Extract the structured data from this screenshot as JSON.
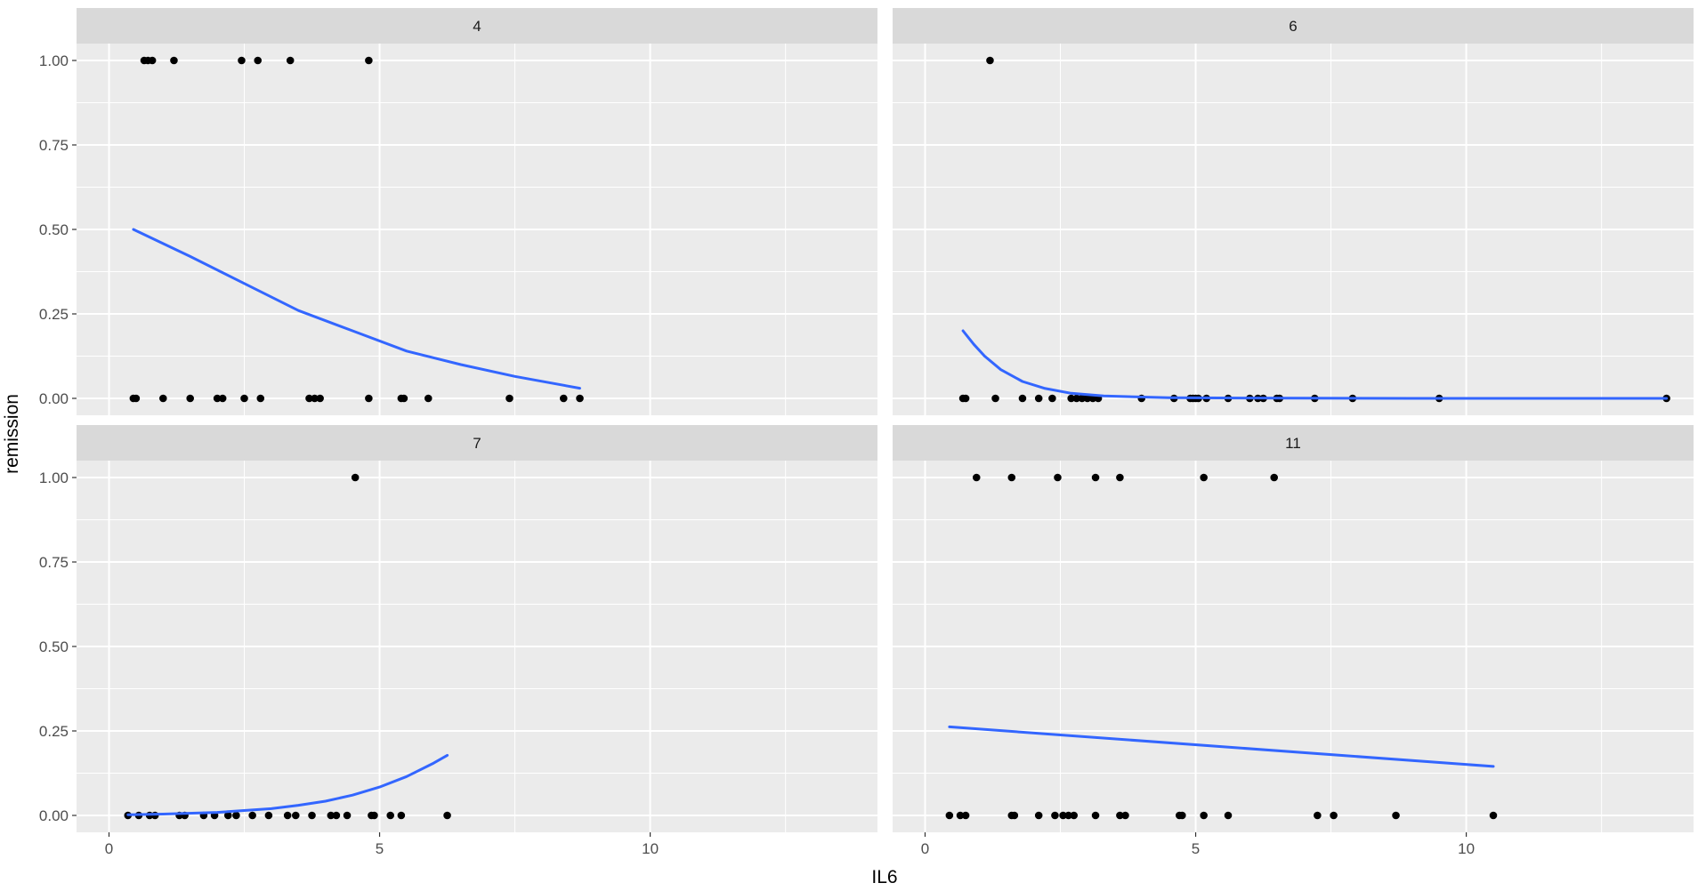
{
  "chart_data": {
    "type": "scatter",
    "facet_layout": "2x2 grid",
    "xlabel": "IL6",
    "ylabel": "remission",
    "xlim": [
      -0.6,
      14.2
    ],
    "ylim": [
      -0.05,
      1.05
    ],
    "x_ticks": [
      "0",
      "5",
      "10"
    ],
    "y_ticks": [
      "0.00",
      "0.25",
      "0.50",
      "0.75",
      "1.00"
    ],
    "grid": true,
    "legend": "none",
    "colors": {
      "panel_background": "#EBEBEB",
      "strip_background": "#D9D9D9",
      "grid": "#FFFFFF",
      "points": "#000000",
      "fit_line": "#3366FF",
      "axis_text": "#4D4D4D"
    },
    "panels": [
      {
        "strip_label": "4",
        "points": [
          [
            0.45,
            0
          ],
          [
            0.5,
            0
          ],
          [
            1.0,
            0
          ],
          [
            1.5,
            0
          ],
          [
            2.0,
            0
          ],
          [
            2.1,
            0
          ],
          [
            2.5,
            0
          ],
          [
            2.8,
            0
          ],
          [
            3.7,
            0
          ],
          [
            3.8,
            0
          ],
          [
            3.9,
            0
          ],
          [
            4.8,
            0
          ],
          [
            5.4,
            0
          ],
          [
            5.45,
            0
          ],
          [
            5.9,
            0
          ],
          [
            7.4,
            0
          ],
          [
            8.4,
            0
          ],
          [
            8.7,
            0
          ],
          [
            0.65,
            1
          ],
          [
            0.72,
            1
          ],
          [
            0.8,
            1
          ],
          [
            1.2,
            1
          ],
          [
            2.45,
            1
          ],
          [
            2.75,
            1
          ],
          [
            3.35,
            1
          ],
          [
            4.8,
            1
          ]
        ],
        "fit": [
          [
            0.45,
            0.5
          ],
          [
            1.5,
            0.42
          ],
          [
            2.5,
            0.34
          ],
          [
            3.5,
            0.26
          ],
          [
            4.5,
            0.2
          ],
          [
            5.5,
            0.14
          ],
          [
            6.5,
            0.1
          ],
          [
            7.5,
            0.065
          ],
          [
            8.7,
            0.03
          ]
        ]
      },
      {
        "strip_label": "6",
        "points": [
          [
            0.7,
            0
          ],
          [
            0.75,
            0
          ],
          [
            1.3,
            0
          ],
          [
            1.8,
            0
          ],
          [
            2.1,
            0
          ],
          [
            2.35,
            0
          ],
          [
            2.7,
            0
          ],
          [
            2.8,
            0
          ],
          [
            2.9,
            0
          ],
          [
            3.0,
            0
          ],
          [
            3.1,
            0
          ],
          [
            3.2,
            0
          ],
          [
            4.0,
            0
          ],
          [
            4.6,
            0
          ],
          [
            4.9,
            0
          ],
          [
            4.95,
            0
          ],
          [
            5.0,
            0
          ],
          [
            5.05,
            0
          ],
          [
            5.2,
            0
          ],
          [
            5.6,
            0
          ],
          [
            6.0,
            0
          ],
          [
            6.15,
            0
          ],
          [
            6.25,
            0
          ],
          [
            6.5,
            0
          ],
          [
            6.55,
            0
          ],
          [
            7.2,
            0
          ],
          [
            7.9,
            0
          ],
          [
            9.5,
            0
          ],
          [
            13.7,
            0
          ],
          [
            1.2,
            1
          ]
        ],
        "fit": [
          [
            0.7,
            0.2
          ],
          [
            0.9,
            0.16
          ],
          [
            1.1,
            0.125
          ],
          [
            1.4,
            0.085
          ],
          [
            1.8,
            0.05
          ],
          [
            2.2,
            0.03
          ],
          [
            2.7,
            0.015
          ],
          [
            3.3,
            0.007
          ],
          [
            4.5,
            0.002
          ],
          [
            6.0,
            0.001
          ],
          [
            9.0,
            0.0
          ],
          [
            13.7,
            0.0
          ]
        ]
      },
      {
        "strip_label": "7",
        "points": [
          [
            0.35,
            0
          ],
          [
            0.55,
            0
          ],
          [
            0.75,
            0
          ],
          [
            0.85,
            0
          ],
          [
            1.3,
            0
          ],
          [
            1.4,
            0
          ],
          [
            1.75,
            0
          ],
          [
            1.95,
            0
          ],
          [
            2.2,
            0
          ],
          [
            2.35,
            0
          ],
          [
            2.65,
            0
          ],
          [
            2.95,
            0
          ],
          [
            3.3,
            0
          ],
          [
            3.45,
            0
          ],
          [
            3.75,
            0
          ],
          [
            4.1,
            0
          ],
          [
            4.2,
            0
          ],
          [
            4.4,
            0
          ],
          [
            4.85,
            0
          ],
          [
            4.9,
            0
          ],
          [
            5.2,
            0
          ],
          [
            5.4,
            0
          ],
          [
            6.25,
            0
          ],
          [
            4.55,
            1
          ]
        ],
        "fit": [
          [
            0.35,
            0.002
          ],
          [
            1.0,
            0.004
          ],
          [
            2.0,
            0.009
          ],
          [
            3.0,
            0.02
          ],
          [
            3.5,
            0.03
          ],
          [
            4.0,
            0.042
          ],
          [
            4.5,
            0.06
          ],
          [
            5.0,
            0.084
          ],
          [
            5.5,
            0.115
          ],
          [
            6.0,
            0.155
          ],
          [
            6.25,
            0.178
          ]
        ]
      },
      {
        "strip_label": "11",
        "points": [
          [
            0.45,
            0
          ],
          [
            0.65,
            0
          ],
          [
            0.75,
            0
          ],
          [
            1.6,
            0
          ],
          [
            1.65,
            0
          ],
          [
            2.1,
            0
          ],
          [
            2.4,
            0
          ],
          [
            2.55,
            0
          ],
          [
            2.65,
            0
          ],
          [
            2.75,
            0
          ],
          [
            3.15,
            0
          ],
          [
            3.6,
            0
          ],
          [
            3.7,
            0
          ],
          [
            4.7,
            0
          ],
          [
            4.75,
            0
          ],
          [
            5.15,
            0
          ],
          [
            5.6,
            0
          ],
          [
            7.25,
            0
          ],
          [
            7.55,
            0
          ],
          [
            8.7,
            0
          ],
          [
            10.5,
            0
          ],
          [
            0.95,
            1
          ],
          [
            1.6,
            1
          ],
          [
            2.45,
            1
          ],
          [
            3.15,
            1
          ],
          [
            3.6,
            1
          ],
          [
            5.15,
            1
          ],
          [
            6.45,
            1
          ]
        ],
        "fit": [
          [
            0.45,
            0.262
          ],
          [
            10.5,
            0.145
          ]
        ]
      }
    ]
  }
}
